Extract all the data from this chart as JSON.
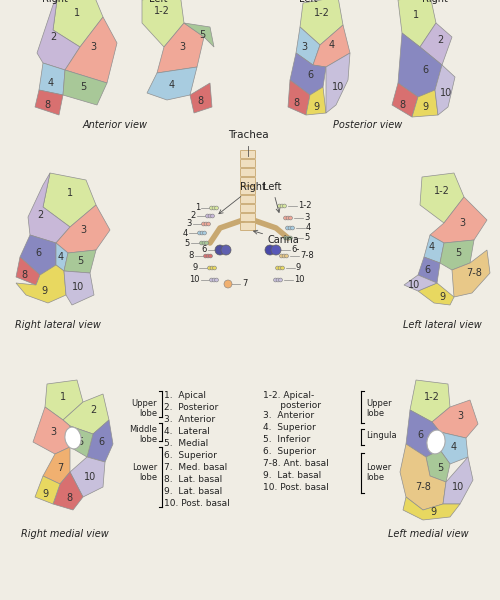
{
  "background_color": "#f0ede4",
  "seg_colors": {
    "c1": "#d8e8a0",
    "c2": "#c8b8d8",
    "c3": "#f0a898",
    "c4": "#a8cce0",
    "c5": "#a8c898",
    "c6": "#8888c0",
    "c7": "#f0b070",
    "c8": "#d87070",
    "c9": "#e8d860",
    "c10": "#c8c0dc",
    "c78": "#e8c888"
  },
  "trachea_fill": "#f0dfc0",
  "trachea_edge": "#c8a870",
  "edge_color": "#909090",
  "views": {
    "anterior_caption": "Anterior view",
    "posterior_caption": "Posterior view",
    "right_lateral_caption": "Right lateral view",
    "left_lateral_caption": "Left lateral view",
    "right_medial_caption": "Right medial view",
    "left_medial_caption": "Left medial view",
    "trachea_label": "Trachea",
    "carina_label": "Carina",
    "right_label": "Right",
    "left_label": "Left"
  },
  "legend_right_items": [
    "1.  Apical",
    "2.  Posterior",
    "3.  Anterior",
    "4.  Lateral",
    "5.  Medial",
    "6.  Superior",
    "7.  Med. basal",
    "8.  Lat. basal",
    "9.  Lat. basal",
    "10. Post. basal"
  ],
  "legend_left_line1": "1-2. Apical-",
  "legend_left_line2": "      posterior",
  "legend_left_items": [
    "3.  Anterior",
    "4.  Superior",
    "5.  Inferior",
    "6.  Superior",
    "7-8. Ant. basal",
    "9.  Lat. basal",
    "10. Post. basal"
  ],
  "right_groups": [
    "Upper\nlobe",
    "Middle\nlobe",
    "Lower\nlobe"
  ],
  "left_groups": [
    "Upper\nlobe",
    "Lingula",
    "Lower\nlobe"
  ]
}
